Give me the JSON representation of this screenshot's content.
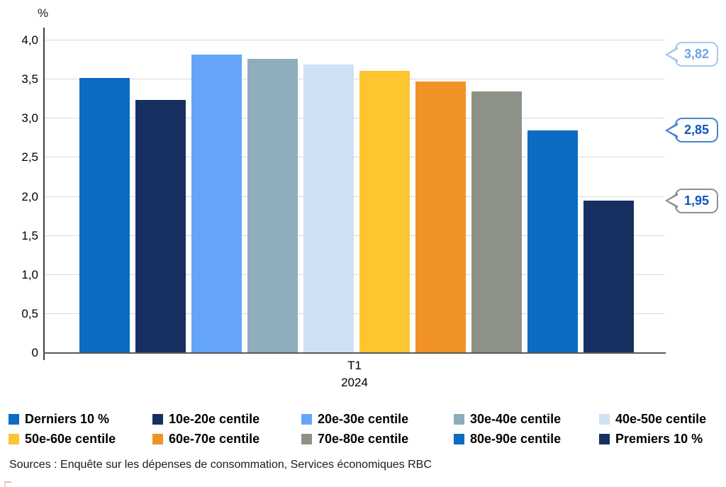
{
  "chart_data": {
    "type": "bar",
    "title": "",
    "unit_label": "%",
    "xlabel": "",
    "ylabel": "%",
    "ylim": [
      0,
      4
    ],
    "grid": true,
    "legend_position": "bottom",
    "x_tick": {
      "line1": "T1",
      "line2": "2024"
    },
    "y_ticks": [
      {
        "value": 0,
        "label": "0"
      },
      {
        "value": 0.5,
        "label": "0,5"
      },
      {
        "value": 1,
        "label": "1,0"
      },
      {
        "value": 1.5,
        "label": "1,5"
      },
      {
        "value": 2,
        "label": "2,0"
      },
      {
        "value": 2.5,
        "label": "2,5"
      },
      {
        "value": 3,
        "label": "3,0"
      },
      {
        "value": 3.5,
        "label": "3,5"
      },
      {
        "value": 4,
        "label": "4,0"
      }
    ],
    "categories": [
      "Derniers 10 %",
      "10e-20e centile",
      "20e-30e centile",
      "30e-40e centile",
      "40e-50e centile",
      "50e-60e centile",
      "60e-70e centile",
      "70e-80e centile",
      "80e-90e centile",
      "Premiers 10 %"
    ],
    "values": [
      3.52,
      3.24,
      3.82,
      3.76,
      3.69,
      3.61,
      3.47,
      3.35,
      2.85,
      1.95
    ],
    "colors": [
      "#0a6cc2",
      "#182f62",
      "#64a5fa",
      "#8fadba",
      "#cfe1f4",
      "#fdc52f",
      "#f19226",
      "#8c9287",
      "#0a6cc2",
      "#182f62"
    ],
    "annotations": [
      {
        "text": "3,82",
        "value": 3.82,
        "border_color": "#a6c8ee",
        "text_color": "#6fa5e0"
      },
      {
        "text": "2,85",
        "value": 2.85,
        "border_color": "#4485d0",
        "text_color": "#0f57c2"
      },
      {
        "text": "1,95",
        "value": 1.95,
        "border_color": "#909090",
        "text_color": "#0f57c2"
      }
    ]
  },
  "source_note": "Sources : Enquête sur les dépenses de consommation, Services économiques RBC"
}
